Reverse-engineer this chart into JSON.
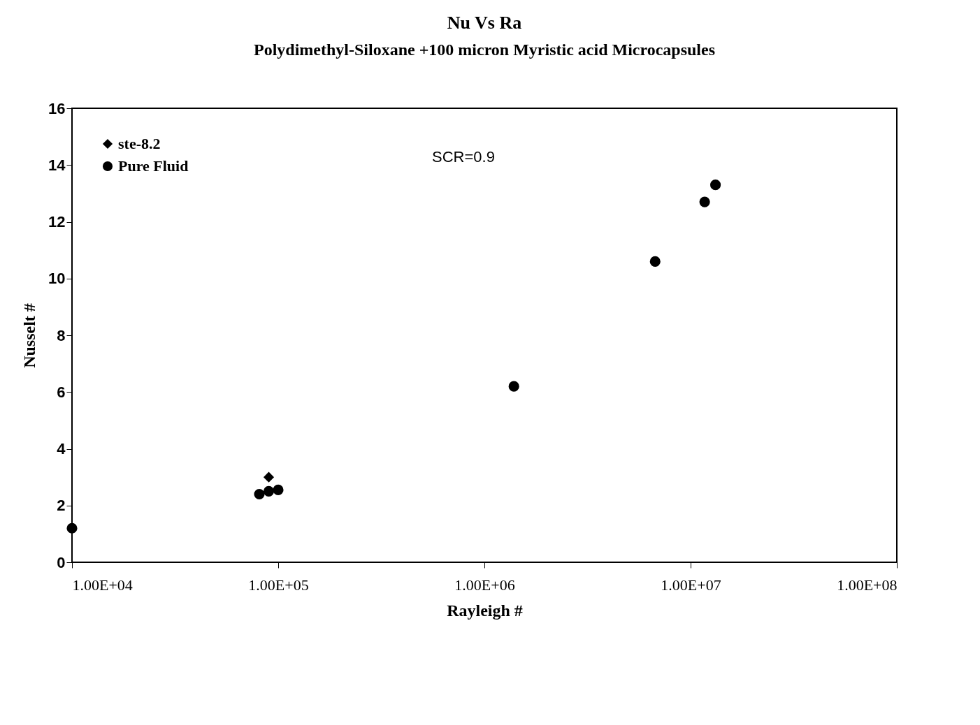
{
  "chart_data": {
    "type": "scatter",
    "title": "Nu Vs Ra",
    "subtitle": "Polydimethyl-Siloxane +100 micron Myristic acid Microcapsules",
    "xlabel": "Rayleigh #",
    "ylabel": "Nusselt #",
    "log": "x",
    "xlim": [
      10000,
      100000000
    ],
    "xticks": [
      {
        "value": 10000,
        "label": "1.00E+04"
      },
      {
        "value": 100000,
        "label": "1.00E+05"
      },
      {
        "value": 1000000,
        "label": "1.00E+06"
      },
      {
        "value": 10000000,
        "label": "1.00E+07"
      },
      {
        "value": 100000000,
        "label": "1.00E+08"
      }
    ],
    "ylim": [
      0,
      16
    ],
    "yticks": [
      0,
      2,
      4,
      6,
      8,
      10,
      12,
      14,
      16
    ],
    "grid": false,
    "legend": "top left",
    "annotations": [
      "SCR=0.9"
    ],
    "series": [
      {
        "name": "ste-8.2",
        "color": "#000000",
        "marker": "diamond",
        "x": [
          90000
        ],
        "values": [
          3.0
        ]
      },
      {
        "name": "Pure Fluid",
        "color": "#000000",
        "marker": "circle",
        "x": [
          10000,
          81000,
          90000,
          100000,
          1390000,
          6730000,
          11700000,
          13200000
        ],
        "values": [
          1.2,
          2.4,
          2.5,
          2.55,
          6.2,
          10.6,
          12.7,
          13.3
        ]
      }
    ]
  }
}
